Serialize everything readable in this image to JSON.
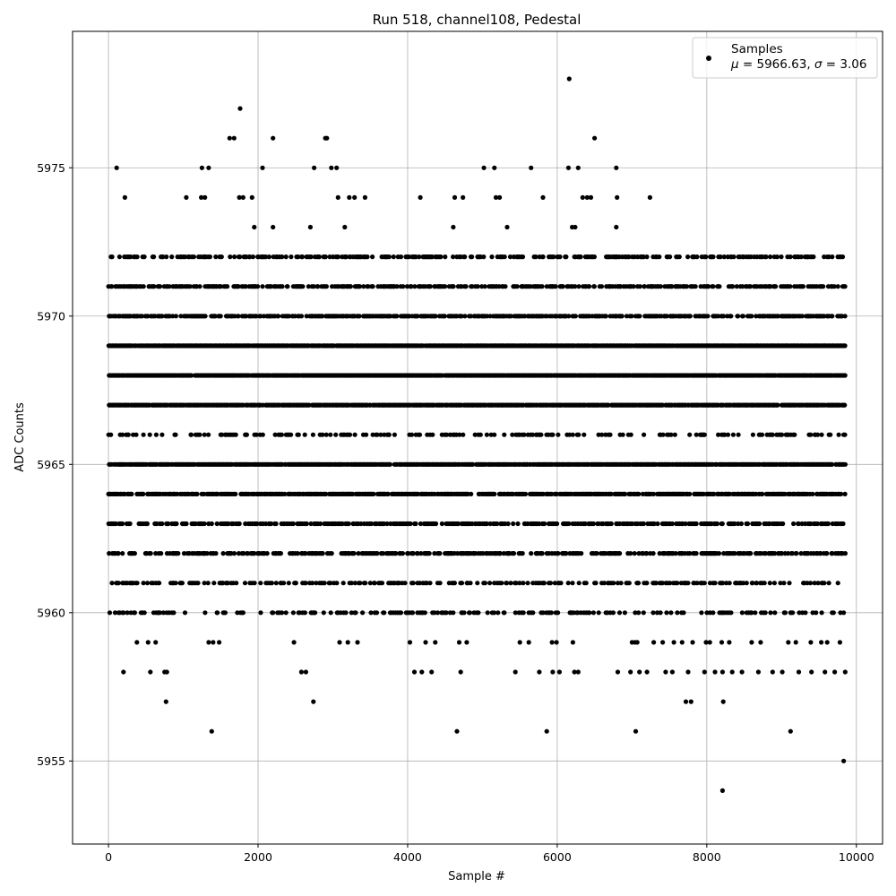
{
  "chart_data": {
    "type": "scatter",
    "title": "Run 518, channel108, Pedestal",
    "xlabel": "Sample #",
    "ylabel": "ADC Counts",
    "xlim": [
      -480,
      10350
    ],
    "ylim": [
      5952.2,
      5979.6
    ],
    "xticks": [
      0,
      2000,
      4000,
      6000,
      8000,
      10000
    ],
    "yticks": [
      5955,
      5960,
      5965,
      5970,
      5975
    ],
    "grid": true,
    "legend": {
      "placement": "upper-right",
      "entries": [
        {
          "label": "Samples",
          "sublabel_parts": [
            "μ",
            " = 5966.63, ",
            "σ",
            " = 3.06"
          ]
        }
      ]
    },
    "colors": {
      "marker": "#000000",
      "grid": "#b0b0b0"
    },
    "series": [
      {
        "name": "Samples",
        "levels": [
          5964,
          5965,
          5967,
          5968,
          5969,
          5970,
          5971,
          5972,
          5962,
          5963,
          5966,
          5961,
          5960
        ],
        "sample_range": [
          0,
          9850
        ],
        "sparse_points": [
          {
            "x": 1,
            "y": 5971
          },
          {
            "x": 110,
            "y": 5975
          },
          {
            "x": 220,
            "y": 5974
          },
          {
            "x": 1040,
            "y": 5974
          },
          {
            "x": 1250,
            "y": 5975
          },
          {
            "x": 1340,
            "y": 5975
          },
          {
            "x": 1240,
            "y": 5974
          },
          {
            "x": 1290,
            "y": 5974
          },
          {
            "x": 1620,
            "y": 5976
          },
          {
            "x": 1680,
            "y": 5976
          },
          {
            "x": 1760,
            "y": 5977
          },
          {
            "x": 1750,
            "y": 5974
          },
          {
            "x": 1800,
            "y": 5974
          },
          {
            "x": 1920,
            "y": 5974
          },
          {
            "x": 1950,
            "y": 5973
          },
          {
            "x": 2060,
            "y": 5975
          },
          {
            "x": 2200,
            "y": 5976
          },
          {
            "x": 2200,
            "y": 5973
          },
          {
            "x": 2700,
            "y": 5973
          },
          {
            "x": 2750,
            "y": 5975
          },
          {
            "x": 2900,
            "y": 5976
          },
          {
            "x": 2920,
            "y": 5976
          },
          {
            "x": 2980,
            "y": 5975
          },
          {
            "x": 3050,
            "y": 5975
          },
          {
            "x": 3070,
            "y": 5974
          },
          {
            "x": 3160,
            "y": 5973
          },
          {
            "x": 3220,
            "y": 5974
          },
          {
            "x": 3290,
            "y": 5974
          },
          {
            "x": 3430,
            "y": 5974
          },
          {
            "x": 4170,
            "y": 5974
          },
          {
            "x": 4610,
            "y": 5973
          },
          {
            "x": 4630,
            "y": 5974
          },
          {
            "x": 4740,
            "y": 5974
          },
          {
            "x": 5020,
            "y": 5975
          },
          {
            "x": 5160,
            "y": 5975
          },
          {
            "x": 5180,
            "y": 5974
          },
          {
            "x": 5230,
            "y": 5974
          },
          {
            "x": 5330,
            "y": 5973
          },
          {
            "x": 5650,
            "y": 5975
          },
          {
            "x": 5810,
            "y": 5974
          },
          {
            "x": 6160,
            "y": 5978
          },
          {
            "x": 6150,
            "y": 5975
          },
          {
            "x": 6200,
            "y": 5973
          },
          {
            "x": 6240,
            "y": 5973
          },
          {
            "x": 6280,
            "y": 5975
          },
          {
            "x": 6340,
            "y": 5974
          },
          {
            "x": 6400,
            "y": 5974
          },
          {
            "x": 6450,
            "y": 5974
          },
          {
            "x": 6500,
            "y": 5976
          },
          {
            "x": 6790,
            "y": 5975
          },
          {
            "x": 6800,
            "y": 5974
          },
          {
            "x": 6790,
            "y": 5973
          },
          {
            "x": 7240,
            "y": 5974
          },
          {
            "x": 380,
            "y": 5959
          },
          {
            "x": 530,
            "y": 5959
          },
          {
            "x": 630,
            "y": 5959
          },
          {
            "x": 1340,
            "y": 5959
          },
          {
            "x": 1400,
            "y": 5959
          },
          {
            "x": 1480,
            "y": 5959
          },
          {
            "x": 2480,
            "y": 5959
          },
          {
            "x": 3090,
            "y": 5959
          },
          {
            "x": 3200,
            "y": 5959
          },
          {
            "x": 3330,
            "y": 5959
          },
          {
            "x": 4030,
            "y": 5959
          },
          {
            "x": 4240,
            "y": 5959
          },
          {
            "x": 4370,
            "y": 5959
          },
          {
            "x": 4690,
            "y": 5959
          },
          {
            "x": 4790,
            "y": 5959
          },
          {
            "x": 5500,
            "y": 5959
          },
          {
            "x": 5620,
            "y": 5959
          },
          {
            "x": 5930,
            "y": 5959
          },
          {
            "x": 5990,
            "y": 5959
          },
          {
            "x": 6210,
            "y": 5959
          },
          {
            "x": 7000,
            "y": 5959
          },
          {
            "x": 7040,
            "y": 5959
          },
          {
            "x": 7070,
            "y": 5959
          },
          {
            "x": 7290,
            "y": 5959
          },
          {
            "x": 7410,
            "y": 5959
          },
          {
            "x": 7560,
            "y": 5959
          },
          {
            "x": 7670,
            "y": 5959
          },
          {
            "x": 7810,
            "y": 5959
          },
          {
            "x": 7990,
            "y": 5959
          },
          {
            "x": 8040,
            "y": 5959
          },
          {
            "x": 8200,
            "y": 5959
          },
          {
            "x": 8300,
            "y": 5959
          },
          {
            "x": 8600,
            "y": 5959
          },
          {
            "x": 8720,
            "y": 5959
          },
          {
            "x": 9090,
            "y": 5959
          },
          {
            "x": 9190,
            "y": 5959
          },
          {
            "x": 9390,
            "y": 5959
          },
          {
            "x": 9530,
            "y": 5959
          },
          {
            "x": 9610,
            "y": 5959
          },
          {
            "x": 9780,
            "y": 5959
          },
          {
            "x": 200,
            "y": 5958
          },
          {
            "x": 560,
            "y": 5958
          },
          {
            "x": 750,
            "y": 5958
          },
          {
            "x": 780,
            "y": 5958
          },
          {
            "x": 2580,
            "y": 5958
          },
          {
            "x": 2640,
            "y": 5958
          },
          {
            "x": 4090,
            "y": 5958
          },
          {
            "x": 4190,
            "y": 5958
          },
          {
            "x": 4320,
            "y": 5958
          },
          {
            "x": 4710,
            "y": 5958
          },
          {
            "x": 5440,
            "y": 5958
          },
          {
            "x": 5760,
            "y": 5958
          },
          {
            "x": 5940,
            "y": 5958
          },
          {
            "x": 6030,
            "y": 5958
          },
          {
            "x": 6230,
            "y": 5958
          },
          {
            "x": 6280,
            "y": 5958
          },
          {
            "x": 6810,
            "y": 5958
          },
          {
            "x": 6980,
            "y": 5958
          },
          {
            "x": 7100,
            "y": 5958
          },
          {
            "x": 7200,
            "y": 5958
          },
          {
            "x": 7450,
            "y": 5958
          },
          {
            "x": 7540,
            "y": 5958
          },
          {
            "x": 7750,
            "y": 5958
          },
          {
            "x": 7970,
            "y": 5958
          },
          {
            "x": 8110,
            "y": 5958
          },
          {
            "x": 8210,
            "y": 5958
          },
          {
            "x": 8340,
            "y": 5958
          },
          {
            "x": 8470,
            "y": 5958
          },
          {
            "x": 8690,
            "y": 5958
          },
          {
            "x": 8880,
            "y": 5958
          },
          {
            "x": 9010,
            "y": 5958
          },
          {
            "x": 9230,
            "y": 5958
          },
          {
            "x": 9400,
            "y": 5958
          },
          {
            "x": 9580,
            "y": 5958
          },
          {
            "x": 9710,
            "y": 5958
          },
          {
            "x": 9850,
            "y": 5958
          },
          {
            "x": 770,
            "y": 5957
          },
          {
            "x": 2740,
            "y": 5957
          },
          {
            "x": 7720,
            "y": 5957
          },
          {
            "x": 7790,
            "y": 5957
          },
          {
            "x": 8220,
            "y": 5957
          },
          {
            "x": 1380,
            "y": 5956
          },
          {
            "x": 4660,
            "y": 5956
          },
          {
            "x": 5860,
            "y": 5956
          },
          {
            "x": 7050,
            "y": 5956
          },
          {
            "x": 9120,
            "y": 5956
          },
          {
            "x": 9830,
            "y": 5955
          },
          {
            "x": 8210,
            "y": 5954
          }
        ]
      }
    ]
  }
}
